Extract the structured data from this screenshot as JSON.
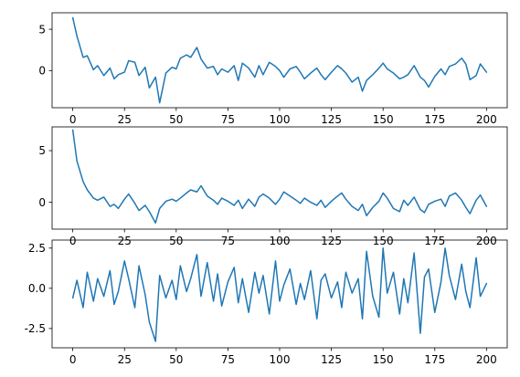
{
  "chart_data": [
    {
      "type": "line",
      "title": "",
      "xlabel": "",
      "ylabel": "",
      "xlim": [
        -10,
        210
      ],
      "ylim": [
        -4.5,
        7.0
      ],
      "xticks": [
        0,
        25,
        50,
        75,
        100,
        125,
        150,
        175,
        200
      ],
      "xtick_labels": [
        "0",
        "25",
        "50",
        "75",
        "100",
        "125",
        "150",
        "175",
        "200"
      ],
      "yticks": [
        0,
        5
      ],
      "ytick_labels": [
        "0",
        "5"
      ],
      "grid": false,
      "color": "#1f77b4",
      "series": [
        {
          "x": [
            0,
            2,
            5,
            7,
            10,
            12,
            15,
            18,
            20,
            22,
            25,
            27,
            30,
            32,
            35,
            37,
            40,
            42,
            45,
            48,
            50,
            52,
            55,
            57,
            60,
            62,
            65,
            68,
            70,
            72,
            75,
            78,
            80,
            82,
            85,
            88,
            90,
            92,
            95,
            98,
            100,
            102,
            105,
            108,
            110,
            112,
            115,
            118,
            120,
            122,
            125,
            128,
            130,
            132,
            135,
            138,
            140,
            142,
            145,
            148,
            150,
            152,
            155,
            158,
            160,
            162,
            165,
            168,
            170,
            172,
            175,
            178,
            180,
            182,
            185,
            188,
            190,
            192,
            195,
            197,
            200
          ],
          "y": [
            6.4,
            4.2,
            1.6,
            1.8,
            0.1,
            0.6,
            -0.6,
            0.3,
            -1.0,
            -0.5,
            -0.2,
            1.2,
            1.0,
            -0.6,
            0.4,
            -2.1,
            -0.8,
            -3.9,
            -0.3,
            0.4,
            0.2,
            1.5,
            1.9,
            1.6,
            2.8,
            1.4,
            0.3,
            0.5,
            -0.5,
            0.2,
            -0.2,
            0.6,
            -1.2,
            0.9,
            0.3,
            -0.8,
            0.6,
            -0.5,
            1.0,
            0.5,
            0.0,
            -0.8,
            0.2,
            0.5,
            -0.2,
            -1.0,
            -0.3,
            0.3,
            -0.5,
            -1.1,
            -0.2,
            0.6,
            0.2,
            -0.3,
            -1.4,
            -0.8,
            -2.5,
            -1.2,
            -0.5,
            0.3,
            0.9,
            0.2,
            -0.3,
            -1.0,
            -0.8,
            -0.5,
            0.6,
            -0.8,
            -1.2,
            -2.0,
            -0.7,
            0.2,
            -0.5,
            0.5,
            0.8,
            1.5,
            0.8,
            -1.1,
            -0.6,
            0.8,
            -0.2
          ]
        }
      ]
    },
    {
      "type": "line",
      "title": "",
      "xlabel": "",
      "ylabel": "",
      "xlim": [
        -10,
        210
      ],
      "ylim": [
        -2.6,
        7.3
      ],
      "xticks": [
        0,
        25,
        50,
        75,
        100,
        125,
        150,
        175,
        200
      ],
      "xtick_labels": [
        "0",
        "25",
        "50",
        "75",
        "100",
        "125",
        "150",
        "175",
        "200"
      ],
      "yticks": [
        0,
        5
      ],
      "ytick_labels": [
        "0",
        "5"
      ],
      "grid": false,
      "color": "#1f77b4",
      "series": [
        {
          "x": [
            0,
            2,
            5,
            7,
            10,
            12,
            15,
            18,
            20,
            22,
            25,
            27,
            30,
            32,
            35,
            37,
            40,
            42,
            45,
            48,
            50,
            52,
            55,
            57,
            60,
            62,
            65,
            68,
            70,
            72,
            75,
            78,
            80,
            82,
            85,
            88,
            90,
            92,
            95,
            98,
            100,
            102,
            105,
            108,
            110,
            112,
            115,
            118,
            120,
            122,
            125,
            128,
            130,
            132,
            135,
            138,
            140,
            142,
            145,
            148,
            150,
            152,
            155,
            158,
            160,
            162,
            165,
            168,
            170,
            172,
            175,
            178,
            180,
            182,
            185,
            188,
            190,
            192,
            195,
            197,
            200
          ],
          "y": [
            7.0,
            4.0,
            2.0,
            1.2,
            0.4,
            0.2,
            0.5,
            -0.4,
            -0.2,
            -0.6,
            0.3,
            0.8,
            -0.1,
            -0.8,
            -0.3,
            -0.9,
            -2.0,
            -0.6,
            0.1,
            0.3,
            0.1,
            0.4,
            0.9,
            1.2,
            1.0,
            1.6,
            0.6,
            0.2,
            -0.2,
            0.4,
            0.1,
            -0.3,
            0.2,
            -0.6,
            0.3,
            -0.4,
            0.5,
            0.8,
            0.4,
            -0.2,
            0.3,
            1.0,
            0.6,
            0.2,
            -0.1,
            0.4,
            0.0,
            -0.3,
            0.2,
            -0.5,
            0.1,
            0.6,
            0.9,
            0.3,
            -0.4,
            -0.8,
            -0.2,
            -1.3,
            -0.5,
            0.1,
            0.9,
            0.4,
            -0.6,
            -0.9,
            0.2,
            -0.3,
            0.5,
            -0.7,
            -1.0,
            -0.2,
            0.1,
            0.3,
            -0.4,
            0.6,
            0.9,
            0.2,
            -0.5,
            -1.1,
            0.2,
            0.7,
            -0.4
          ]
        }
      ]
    },
    {
      "type": "line",
      "title": "",
      "xlabel": "",
      "ylabel": "",
      "xlim": [
        -10,
        210
      ],
      "ylim": [
        -3.7,
        3.0
      ],
      "xticks": [
        0,
        25,
        50,
        75,
        100,
        125,
        150,
        175,
        200
      ],
      "xtick_labels": [
        "0",
        "25",
        "50",
        "75",
        "100",
        "125",
        "150",
        "175",
        "200"
      ],
      "yticks": [
        -2.5,
        0.0,
        2.5
      ],
      "ytick_labels": [
        "-2.5",
        "0.0",
        "2.5"
      ],
      "grid": false,
      "color": "#1f77b4",
      "series": [
        {
          "x": [
            0,
            2,
            5,
            7,
            10,
            12,
            15,
            18,
            20,
            22,
            25,
            27,
            30,
            32,
            35,
            37,
            40,
            42,
            45,
            48,
            50,
            52,
            55,
            57,
            60,
            62,
            65,
            68,
            70,
            72,
            75,
            78,
            80,
            82,
            85,
            88,
            90,
            92,
            95,
            98,
            100,
            102,
            105,
            108,
            110,
            112,
            115,
            118,
            120,
            122,
            125,
            128,
            130,
            132,
            135,
            138,
            140,
            142,
            145,
            148,
            150,
            152,
            155,
            158,
            160,
            162,
            165,
            168,
            170,
            172,
            175,
            178,
            180,
            182,
            185,
            188,
            190,
            192,
            195,
            197,
            200
          ],
          "y": [
            -0.6,
            0.5,
            -1.2,
            1.0,
            -0.8,
            0.6,
            -0.5,
            1.1,
            -1.0,
            -0.2,
            1.7,
            0.6,
            -1.2,
            1.4,
            -0.4,
            -2.1,
            -3.3,
            0.8,
            -0.6,
            0.5,
            -0.7,
            1.4,
            -0.2,
            0.6,
            2.1,
            -0.5,
            1.6,
            -0.8,
            0.9,
            -1.1,
            0.4,
            1.3,
            -0.9,
            0.6,
            -1.5,
            1.0,
            -0.3,
            0.8,
            -1.6,
            1.7,
            -0.8,
            0.2,
            1.2,
            -1.0,
            0.3,
            -0.7,
            1.1,
            -1.9,
            0.5,
            0.9,
            -0.6,
            0.4,
            -1.2,
            1.0,
            -0.3,
            0.6,
            -1.9,
            2.3,
            -0.5,
            -1.8,
            2.5,
            -0.3,
            1.0,
            -1.6,
            0.6,
            -0.9,
            2.2,
            -2.8,
            0.7,
            1.2,
            -1.5,
            0.4,
            2.5,
            0.8,
            -0.7,
            1.5,
            -0.2,
            -1.2,
            1.9,
            -0.5,
            0.3
          ]
        }
      ]
    }
  ]
}
